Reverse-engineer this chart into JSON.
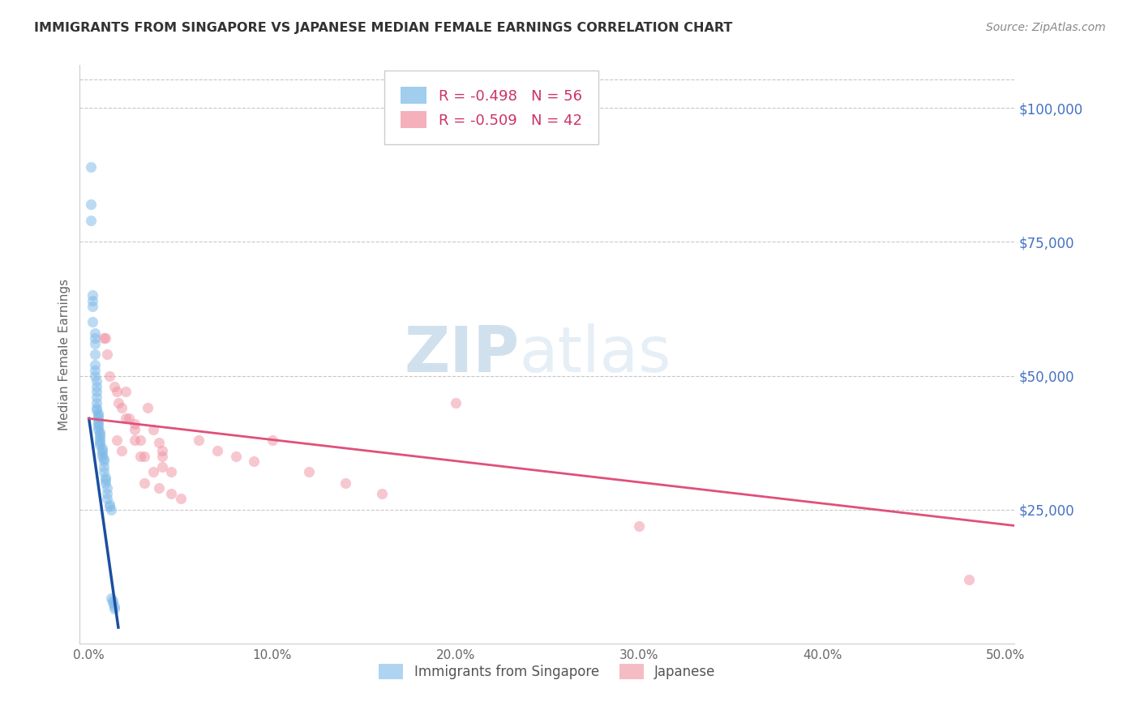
{
  "title": "IMMIGRANTS FROM SINGAPORE VS JAPANESE MEDIAN FEMALE EARNINGS CORRELATION CHART",
  "source": "Source: ZipAtlas.com",
  "xlabel_ticks": [
    "0.0%",
    "10.0%",
    "20.0%",
    "30.0%",
    "40.0%",
    "50.0%"
  ],
  "xlabel_vals": [
    0.0,
    0.1,
    0.2,
    0.3,
    0.4,
    0.5
  ],
  "ylabel_ticks": [
    "$25,000",
    "$50,000",
    "$75,000",
    "$100,000"
  ],
  "ylabel_vals": [
    25000,
    50000,
    75000,
    100000
  ],
  "ylabel_label": "Median Female Earnings",
  "xlim": [
    -0.005,
    0.505
  ],
  "ylim": [
    0,
    108000
  ],
  "legend1_label": "Immigrants from Singapore",
  "legend2_label": "Japanese",
  "r1": -0.498,
  "n1": 56,
  "r2": -0.509,
  "n2": 42,
  "blue_color": "#7ab8e8",
  "pink_color": "#f090a0",
  "blue_line_color": "#1a4fa0",
  "pink_line_color": "#e0507a",
  "blue_scatter_x": [
    0.001,
    0.001,
    0.002,
    0.002,
    0.002,
    0.002,
    0.003,
    0.003,
    0.003,
    0.003,
    0.003,
    0.003,
    0.003,
    0.004,
    0.004,
    0.004,
    0.004,
    0.004,
    0.004,
    0.004,
    0.005,
    0.005,
    0.005,
    0.005,
    0.005,
    0.005,
    0.005,
    0.006,
    0.006,
    0.006,
    0.006,
    0.006,
    0.006,
    0.007,
    0.007,
    0.007,
    0.007,
    0.008,
    0.008,
    0.008,
    0.008,
    0.009,
    0.009,
    0.009,
    0.01,
    0.01,
    0.01,
    0.011,
    0.011,
    0.012,
    0.012,
    0.013,
    0.013,
    0.014,
    0.014,
    0.001
  ],
  "blue_scatter_y": [
    89000,
    79000,
    65000,
    64000,
    63000,
    60000,
    58000,
    57000,
    56000,
    54000,
    52000,
    51000,
    50000,
    49000,
    48000,
    47000,
    46000,
    45000,
    44000,
    43500,
    43000,
    42500,
    42000,
    41500,
    41000,
    40500,
    40000,
    39500,
    39000,
    38500,
    38000,
    37500,
    37000,
    36500,
    36000,
    35500,
    35000,
    34500,
    34000,
    33000,
    32000,
    31000,
    30500,
    30000,
    29000,
    28000,
    27000,
    26000,
    25500,
    25000,
    8500,
    8000,
    7500,
    7000,
    6500,
    82000
  ],
  "pink_scatter_x": [
    0.008,
    0.009,
    0.01,
    0.011,
    0.014,
    0.015,
    0.016,
    0.018,
    0.02,
    0.022,
    0.025,
    0.025,
    0.028,
    0.03,
    0.032,
    0.035,
    0.038,
    0.04,
    0.04,
    0.045,
    0.015,
    0.018,
    0.02,
    0.025,
    0.028,
    0.03,
    0.035,
    0.038,
    0.04,
    0.045,
    0.05,
    0.06,
    0.07,
    0.08,
    0.09,
    0.1,
    0.12,
    0.14,
    0.16,
    0.2,
    0.3,
    0.48
  ],
  "pink_scatter_y": [
    57000,
    57000,
    54000,
    50000,
    48000,
    47000,
    45000,
    44000,
    47000,
    42000,
    41000,
    40000,
    38000,
    35000,
    44000,
    40000,
    37500,
    36000,
    33000,
    32000,
    38000,
    36000,
    42000,
    38000,
    35000,
    30000,
    32000,
    29000,
    35000,
    28000,
    27000,
    38000,
    36000,
    35000,
    34000,
    38000,
    32000,
    30000,
    28000,
    45000,
    22000,
    12000
  ],
  "watermark_zip": "ZIP",
  "watermark_atlas": "atlas",
  "background_color": "#ffffff",
  "grid_color": "#c8c8c8"
}
